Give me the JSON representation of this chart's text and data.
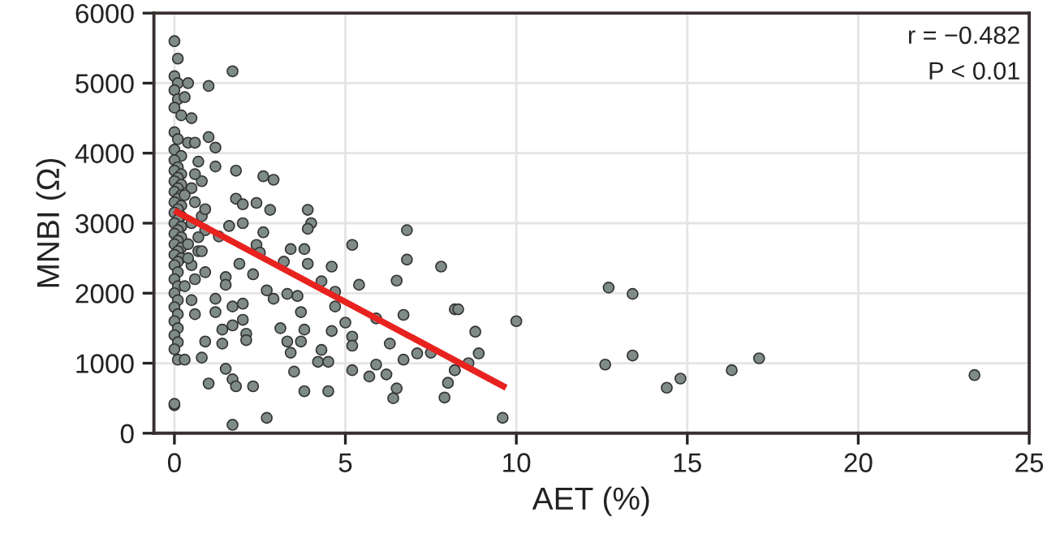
{
  "chart_data": {
    "type": "scatter",
    "xlabel": "AET (%)",
    "ylabel": "MNBI (Ω)",
    "xlim": [
      -0.6,
      25
    ],
    "xticks": [
      0,
      5,
      10,
      15,
      20,
      25
    ],
    "ylim": [
      0,
      6000
    ],
    "yticks": [
      0,
      1000,
      2000,
      3000,
      4000,
      5000,
      6000
    ],
    "grid": true,
    "annotations": [
      "r = −0.482",
      "P < 0.01"
    ],
    "series": [
      {
        "marker": "circle",
        "color": "#7f8b88",
        "x": [
          0,
          0.1,
          0,
          0.1,
          0,
          0.1,
          0,
          0.2,
          0,
          0.1,
          0,
          0.2,
          0,
          0.1,
          0,
          0.2,
          0.1,
          0,
          0.2,
          0.1,
          0,
          0.2,
          0.1,
          0,
          0.2,
          0.1,
          0,
          0.2,
          0.1,
          0,
          0.2,
          0.1,
          0,
          0.2,
          0.1,
          0,
          0.2,
          0.1,
          0,
          0.2,
          0.1,
          0,
          0.1,
          0,
          0.1,
          0,
          0.1,
          0,
          0.1,
          0,
          0.1,
          0,
          0.1,
          0,
          0.1,
          0,
          0.4,
          1.0,
          1.7,
          0.3,
          0.5,
          0.4,
          0.6,
          1.0,
          1.2,
          0.7,
          1.2,
          1.8,
          2.6,
          2.9,
          1.8,
          2.0,
          2.4,
          2.8,
          3.9,
          4.0,
          3.9,
          2.6,
          1.3,
          1.6,
          2.0,
          5.2,
          6.8,
          6.8,
          7.8,
          3.4,
          3.8,
          2.4,
          2.5,
          3.2,
          3.9,
          4.6,
          4.3,
          5.4,
          6.5,
          4.7,
          3.3,
          3.6,
          2.9,
          2.7,
          2.3,
          1.9,
          1.5,
          1.5,
          1.2,
          1.7,
          2.0,
          1.2,
          3.7,
          4.7,
          8.2,
          6.7,
          5.9,
          5.0,
          4.6,
          5.2,
          5.2,
          3.1,
          3.8,
          3.3,
          3.7,
          1.4,
          1.7,
          2.0,
          2.1,
          2.1,
          0.9,
          1.4,
          3.4,
          4.3,
          6.3,
          6.7,
          7.1,
          7.5,
          0.3,
          0.8,
          1.5,
          1.7,
          1.0,
          1.8,
          2.3,
          3.5,
          4.2,
          4.5,
          4.5,
          3.8,
          5.2,
          5.7,
          5.9,
          6.2,
          6.5,
          6.4,
          8.0,
          7.9,
          8.2,
          0,
          1.7,
          2.7,
          8.3,
          8.8,
          8.9,
          8.6,
          8.2,
          10.0,
          9.6,
          12.7,
          13.4,
          12.6,
          13.4,
          14.4,
          14.8,
          16.3,
          17.1,
          23.4,
          0.5,
          0.6,
          0.8,
          0.9,
          0.4,
          0.7,
          0.5,
          0.9,
          0.6,
          0.8,
          0.3,
          0.5,
          0.7,
          0.4,
          0.6,
          0.9,
          0.3,
          0.5,
          0.8,
          0.6
        ],
        "values": [
          5600,
          5350,
          5100,
          5000,
          4900,
          4770,
          4650,
          4540,
          4300,
          4200,
          4050,
          3960,
          3900,
          3800,
          3750,
          3700,
          3650,
          3600,
          3550,
          3500,
          3450,
          3400,
          3350,
          3300,
          3250,
          3200,
          3150,
          3100,
          3050,
          3000,
          2950,
          2900,
          2850,
          2800,
          2750,
          2700,
          2650,
          2600,
          2550,
          2500,
          2450,
          2400,
          2300,
          2200,
          2100,
          2000,
          1900,
          1800,
          1700,
          1600,
          1500,
          1400,
          1300,
          1200,
          1050,
          400,
          5000,
          4960,
          5170,
          4800,
          4500,
          4150,
          4150,
          4230,
          4080,
          3880,
          3810,
          3750,
          3670,
          3620,
          3350,
          3270,
          3290,
          3190,
          3190,
          3000,
          2920,
          2870,
          2810,
          2960,
          3000,
          2690,
          2900,
          2480,
          2380,
          2630,
          2630,
          2690,
          2580,
          2450,
          2420,
          2380,
          2170,
          2120,
          2180,
          2020,
          1990,
          1960,
          1920,
          2040,
          2270,
          2420,
          2230,
          2120,
          1920,
          1810,
          1850,
          1730,
          1730,
          1810,
          1770,
          1690,
          1640,
          1580,
          1460,
          1380,
          1250,
          1500,
          1480,
          1310,
          1310,
          1480,
          1540,
          1620,
          1420,
          1330,
          1310,
          1280,
          1150,
          1190,
          1280,
          1050,
          1140,
          1150,
          1050,
          1080,
          920,
          770,
          710,
          670,
          670,
          880,
          1020,
          1020,
          600,
          600,
          900,
          810,
          980,
          840,
          640,
          500,
          720,
          510,
          900,
          420,
          120,
          220,
          1770,
          1450,
          1140,
          1000,
          900,
          1600,
          220,
          2080,
          1990,
          980,
          1110,
          650,
          780,
          900,
          1070,
          830,
          3500,
          3300,
          3100,
          2900,
          2700,
          2600,
          2400,
          2300,
          2200,
          3600,
          3400,
          3000,
          2800,
          2500,
          3700,
          3200,
          2100,
          1900,
          2600,
          1700
        ]
      },
      {
        "type": "line",
        "color": "#e8221e",
        "x": [
          0,
          9.7
        ],
        "values": [
          3180,
          650
        ]
      }
    ]
  }
}
